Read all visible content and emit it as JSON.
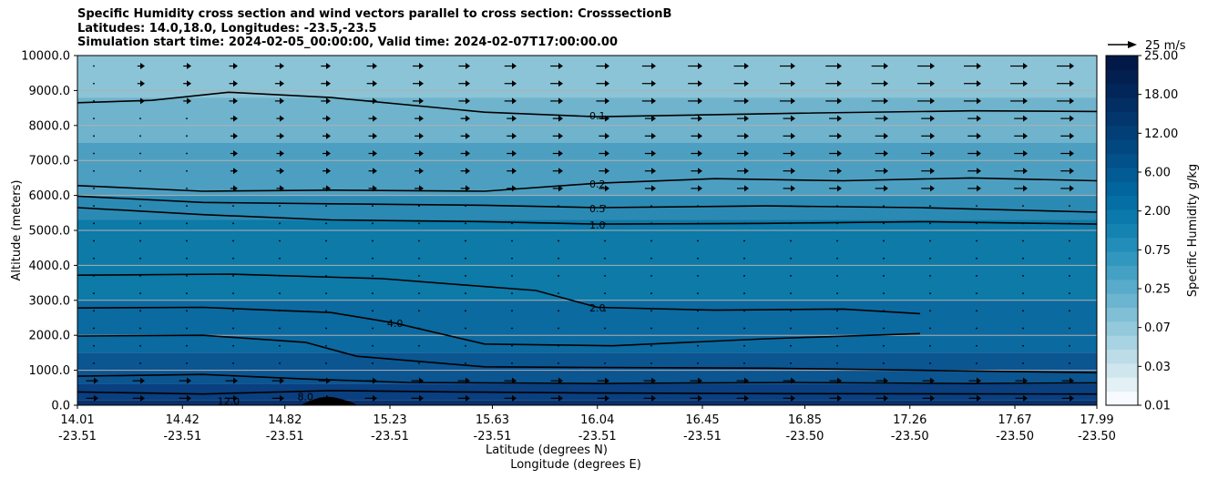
{
  "chart_data": {
    "type": "heatmap",
    "title_lines": [
      "Specific Humidity cross section and wind vectors parallel to cross section: CrosssectionB",
      "Latitudes: 14.0,18.0, Longitudes: -23.5,-23.5",
      "Simulation start time: 2024-02-05_00:00:00, Valid time: 2024-02-07T17:00:00.00"
    ],
    "xlabel_lat": "Latitude (degrees N)",
    "xlabel_lon": "Longitude (degrees E)",
    "ylabel": "Altitude (meters)",
    "ylim": [
      0,
      10000
    ],
    "xlim": [
      14.01,
      17.99
    ],
    "yticks": [
      {
        "value": 0,
        "label": "0.0"
      },
      {
        "value": 1000,
        "label": "1000.0"
      },
      {
        "value": 2000,
        "label": "2000.0"
      },
      {
        "value": 3000,
        "label": "3000.0"
      },
      {
        "value": 4000,
        "label": "4000.0"
      },
      {
        "value": 5000,
        "label": "5000.0"
      },
      {
        "value": 6000,
        "label": "6000.0"
      },
      {
        "value": 7000,
        "label": "7000.0"
      },
      {
        "value": 8000,
        "label": "8000.0"
      },
      {
        "value": 9000,
        "label": "9000.0"
      },
      {
        "value": 10000,
        "label": "10000.0"
      }
    ],
    "xticks": [
      {
        "value": 14.01,
        "lat": "14.01",
        "lon": "-23.51"
      },
      {
        "value": 14.42,
        "lat": "14.42",
        "lon": "-23.51"
      },
      {
        "value": 14.82,
        "lat": "14.82",
        "lon": "-23.51"
      },
      {
        "value": 15.23,
        "lat": "15.23",
        "lon": "-23.51"
      },
      {
        "value": 15.63,
        "lat": "15.63",
        "lon": "-23.51"
      },
      {
        "value": 16.04,
        "lat": "16.04",
        "lon": "-23.51"
      },
      {
        "value": 16.45,
        "lat": "16.45",
        "lon": "-23.51"
      },
      {
        "value": 16.85,
        "lat": "16.85",
        "lon": "-23.50"
      },
      {
        "value": 17.26,
        "lat": "17.26",
        "lon": "-23.50"
      },
      {
        "value": 17.67,
        "lat": "17.67",
        "lon": "-23.50"
      },
      {
        "value": 17.99,
        "lat": "17.99",
        "lon": "-23.50"
      }
    ],
    "colorbar": {
      "label": "Specific Humidity g/kg",
      "tick_labels": [
        "0.01",
        "0.03",
        "0.07",
        "0.25",
        "0.75",
        "2.00",
        "6.00",
        "12.00",
        "18.00",
        "25.00"
      ]
    },
    "quiver_key": "25 m/s",
    "humidity_bands": [
      {
        "bottom": 0,
        "top": 150,
        "color": "#08306b"
      },
      {
        "bottom": 150,
        "top": 600,
        "color": "#0a3f80"
      },
      {
        "bottom": 600,
        "top": 1500,
        "color": "#0b5591"
      },
      {
        "bottom": 1500,
        "top": 3000,
        "color": "#0b6aa0"
      },
      {
        "bottom": 3000,
        "top": 5300,
        "color": "#0d7aa8"
      },
      {
        "bottom": 5300,
        "top": 6000,
        "color": "#2b8ab3"
      },
      {
        "bottom": 6000,
        "top": 7500,
        "color": "#4d9fc1"
      },
      {
        "bottom": 7500,
        "top": 8800,
        "color": "#6fb3cc"
      },
      {
        "bottom": 8800,
        "top": 10000,
        "color": "#8cc4d7"
      }
    ],
    "contours": [
      {
        "level": "0.1",
        "points": [
          [
            14.01,
            8650
          ],
          [
            14.3,
            8720
          ],
          [
            14.6,
            8950
          ],
          [
            15.0,
            8800
          ],
          [
            15.6,
            8380
          ],
          [
            16.04,
            8250
          ],
          [
            16.8,
            8350
          ],
          [
            17.5,
            8420
          ],
          [
            17.99,
            8400
          ]
        ],
        "label": "0.1",
        "label_at": [
          16.04,
          8280
        ]
      },
      {
        "level": "0.2",
        "points": [
          [
            14.01,
            6280
          ],
          [
            14.5,
            6120
          ],
          [
            15.0,
            6150
          ],
          [
            15.6,
            6120
          ],
          [
            16.04,
            6350
          ],
          [
            16.5,
            6480
          ],
          [
            17.0,
            6420
          ],
          [
            17.5,
            6500
          ],
          [
            17.99,
            6420
          ]
        ],
        "label": "0.2",
        "label_at": [
          16.04,
          6330
        ]
      },
      {
        "level": "0.5",
        "points": [
          [
            14.01,
            5980
          ],
          [
            14.5,
            5800
          ],
          [
            15.0,
            5760
          ],
          [
            15.6,
            5720
          ],
          [
            16.04,
            5650
          ],
          [
            16.7,
            5700
          ],
          [
            17.3,
            5650
          ],
          [
            17.99,
            5520
          ]
        ],
        "label": "0.5",
        "label_at": [
          16.04,
          5620
        ]
      },
      {
        "level": "1.0",
        "points": [
          [
            14.01,
            5650
          ],
          [
            14.5,
            5450
          ],
          [
            15.0,
            5300
          ],
          [
            15.6,
            5250
          ],
          [
            16.04,
            5180
          ],
          [
            16.7,
            5200
          ],
          [
            17.3,
            5250
          ],
          [
            17.99,
            5180
          ]
        ],
        "label": "1.0",
        "label_at": [
          16.04,
          5160
        ]
      },
      {
        "level": "2.0",
        "points": [
          [
            14.01,
            3720
          ],
          [
            14.6,
            3750
          ],
          [
            15.2,
            3620
          ],
          [
            15.8,
            3280
          ],
          [
            16.04,
            2800
          ],
          [
            16.5,
            2720
          ],
          [
            17.0,
            2750
          ],
          [
            17.3,
            2620
          ]
        ],
        "label": "2.0",
        "label_at": [
          16.04,
          2780
        ]
      },
      {
        "level": "4.0",
        "points": [
          [
            14.01,
            2780
          ],
          [
            14.5,
            2800
          ],
          [
            15.0,
            2650
          ],
          [
            15.25,
            2350
          ],
          [
            15.6,
            1750
          ],
          [
            16.1,
            1700
          ],
          [
            16.7,
            1900
          ],
          [
            17.3,
            2050
          ]
        ],
        "label": "4.0",
        "label_at": [
          15.25,
          2350
        ]
      },
      {
        "level": "6.0",
        "points": [
          [
            14.01,
            1980
          ],
          [
            14.5,
            2000
          ],
          [
            14.9,
            1800
          ],
          [
            15.1,
            1400
          ],
          [
            15.6,
            1100
          ],
          [
            16.04,
            1080
          ],
          [
            16.7,
            1060
          ],
          [
            17.3,
            1000
          ],
          [
            17.99,
            930
          ]
        ],
        "label": "",
        "label_at": [
          15.0,
          900
        ]
      },
      {
        "level": "8.0",
        "points": [
          [
            14.01,
            830
          ],
          [
            14.5,
            880
          ],
          [
            14.9,
            750
          ],
          [
            15.3,
            650
          ],
          [
            16.04,
            620
          ],
          [
            16.8,
            650
          ],
          [
            17.5,
            620
          ],
          [
            17.99,
            640
          ]
        ],
        "label": "8.0",
        "label_at": [
          14.9,
          250
        ]
      },
      {
        "level": "12.0",
        "points": [
          [
            14.01,
            380
          ],
          [
            14.5,
            320
          ],
          [
            15.0,
            420
          ],
          [
            15.5,
            380
          ],
          [
            16.04,
            350
          ],
          [
            16.8,
            330
          ],
          [
            17.99,
            320
          ]
        ],
        "label": "12.0",
        "label_at": [
          14.6,
          120
        ]
      }
    ]
  }
}
